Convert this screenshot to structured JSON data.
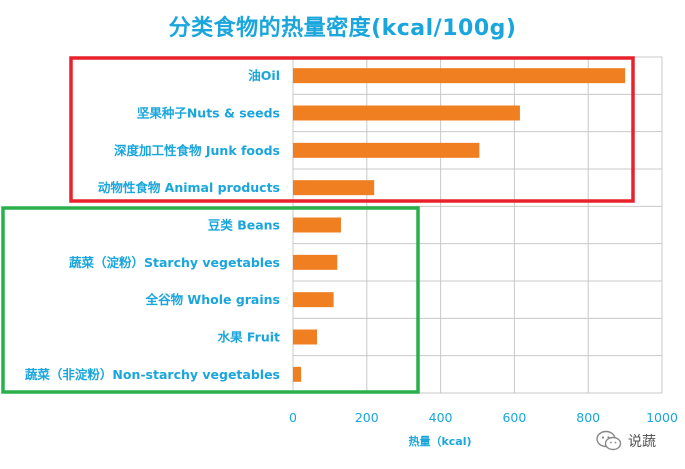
{
  "chart_data": {
    "type": "bar",
    "orientation": "horizontal",
    "title": "分类食物的热量密度(kcal/100g)",
    "xlabel": "热量（kcal)",
    "ylabel": "",
    "xlim": [
      0,
      1000
    ],
    "xticks": [
      0,
      200,
      400,
      600,
      800,
      1000
    ],
    "grid": true,
    "bar_color": "#f07f21",
    "title_color": "#1aa6dc",
    "categories": [
      "油Oil",
      "坚果种子Nuts & seeds",
      "深度加工性食物 Junk foods",
      "动物性食物 Animal products",
      "豆类 Beans",
      "蔬菜（淀粉）Starchy vegetables",
      "全谷物 Whole grains",
      "水果 Fruit",
      "蔬菜（非淀粉）Non-starchy vegetables"
    ],
    "values": [
      900,
      615,
      505,
      220,
      130,
      120,
      110,
      65,
      22
    ],
    "group_boxes": [
      {
        "color": "#e8212b",
        "categories": [
          0,
          3
        ]
      },
      {
        "color": "#29b04a",
        "categories": [
          4,
          8
        ]
      }
    ]
  },
  "watermark": {
    "text": "说蔬",
    "icon": "wechat-icon"
  }
}
